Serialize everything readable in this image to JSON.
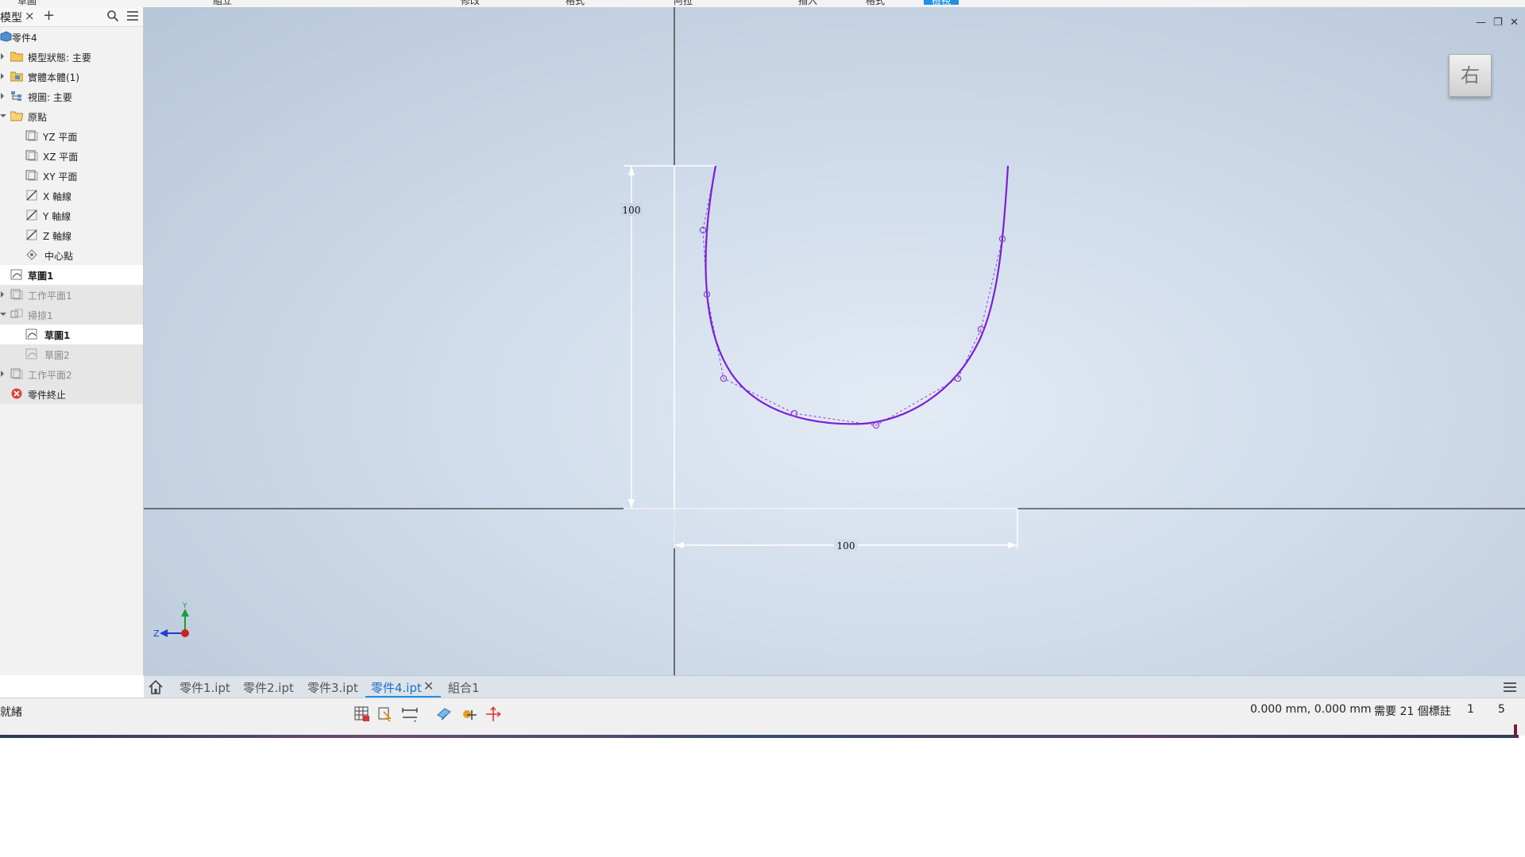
{
  "ribbon": {
    "items": [
      "草圖",
      "組立",
      "修改",
      "格式",
      "阿拉",
      "插入",
      "格式",
      "檢視"
    ],
    "active_index": 7
  },
  "browser": {
    "title": "模型",
    "close": "×",
    "add": "+",
    "nodes": [
      {
        "label": "零件4",
        "icon": "part-icon"
      },
      {
        "label": "模型狀態: 主要",
        "icon": "folder-icon"
      },
      {
        "label": "實體本體(1)",
        "icon": "solid-bodies-icon"
      },
      {
        "label": "視圖: 主要",
        "icon": "view-icon"
      },
      {
        "label": "原點",
        "icon": "origin-folder-icon"
      },
      {
        "label": "YZ 平面",
        "icon": "plane-icon"
      },
      {
        "label": "XZ 平面",
        "icon": "plane-icon"
      },
      {
        "label": "XY 平面",
        "icon": "plane-icon"
      },
      {
        "label": "X 軸線",
        "icon": "axis-icon"
      },
      {
        "label": "Y 軸線",
        "icon": "axis-icon"
      },
      {
        "label": "Z 軸線",
        "icon": "axis-icon"
      },
      {
        "label": "中心點",
        "icon": "center-point-icon"
      },
      {
        "label": "草圖1",
        "icon": "sketch-icon"
      },
      {
        "label": "工作平面1",
        "icon": "work-plane-icon"
      },
      {
        "label": "掃掠1",
        "icon": "sweep-icon"
      },
      {
        "label": "草圖1",
        "icon": "sketch-icon"
      },
      {
        "label": "草圖2",
        "icon": "sketch-icon"
      },
      {
        "label": "工作平面2",
        "icon": "work-plane-icon"
      },
      {
        "label": "零件終止",
        "icon": "end-of-part-icon"
      }
    ]
  },
  "sketch": {
    "dim_vertical": "100",
    "dim_horizontal": "100",
    "curve_color": "#7b1fd8",
    "control_color": "#8e3fd6"
  },
  "viewcube": {
    "label": "右"
  },
  "triad": {
    "y": "Y",
    "z": "Z"
  },
  "tabs": [
    {
      "label": "零件1.ipt"
    },
    {
      "label": "零件2.ipt"
    },
    {
      "label": "零件3.ipt"
    },
    {
      "label": "零件4.ipt",
      "active": true
    },
    {
      "label": "組合1"
    }
  ],
  "status": {
    "ready": "就緒",
    "coords": "0.000 mm, 0.000 mm",
    "dims_needed": "需要 21 個標註",
    "count_a": "1",
    "count_b": "5"
  }
}
